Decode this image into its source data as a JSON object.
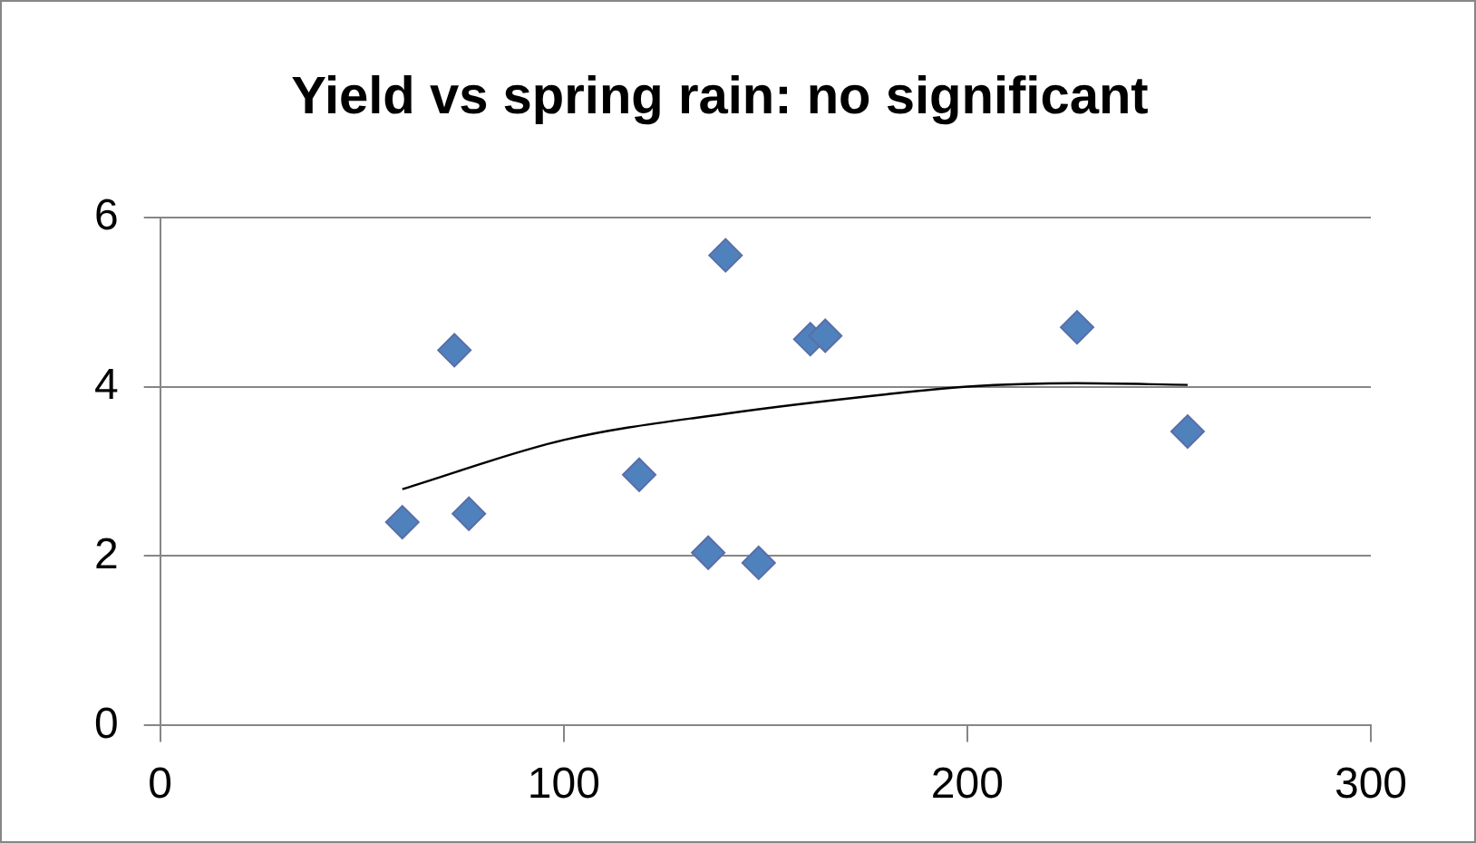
{
  "chart_data": {
    "type": "scatter",
    "title": "Yield vs spring rain: no significant",
    "series": [
      {
        "color": "#4f81bd",
        "marker": "diamond",
        "x": [
          60,
          72.9,
          76.5,
          118.7,
          135.8,
          140.1,
          148.3,
          161.1,
          164.8,
          227.2,
          254.6
        ],
        "values": [
          2.4,
          4.43,
          2.5,
          2.96,
          2.04,
          5.55,
          1.92,
          4.56,
          4.6,
          4.7,
          3.47
        ]
      },
      {
        "type": "line",
        "color": "#000000",
        "marker": "none",
        "line_style": "solid",
        "x": [
          60,
          100,
          140,
          180,
          200,
          227,
          254.6
        ],
        "values": [
          2.79,
          3.37,
          3.68,
          3.91,
          4.0,
          4.04,
          4.02
        ]
      }
    ],
    "xlim": [
      0,
      300
    ],
    "xticks": [
      0,
      100,
      200,
      300
    ],
    "ylim": [
      0,
      6
    ],
    "yticks": [
      0,
      2,
      4,
      6
    ],
    "grid": "y",
    "legend": false
  }
}
